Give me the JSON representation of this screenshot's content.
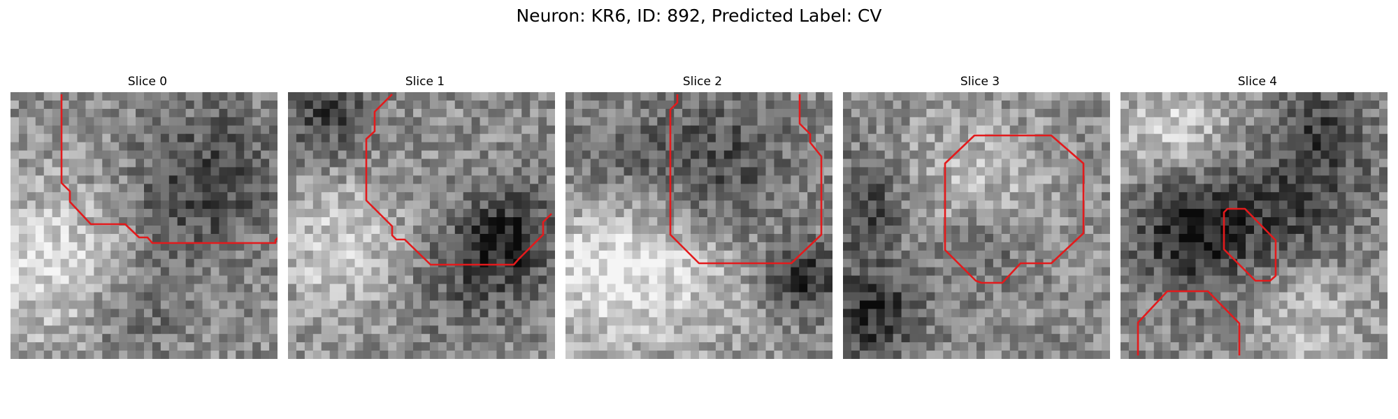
{
  "figure": {
    "title": "Neuron: KR6, ID: 892, Predicted Label: CV",
    "contour_color": "#e31a1c"
  },
  "panels": [
    {
      "title": "Slice 0",
      "seed": 11,
      "blobs": [
        {
          "cx": 4,
          "cy": 20,
          "r": 7,
          "v": 35
        },
        {
          "cx": 24,
          "cy": 9,
          "r": 6,
          "v": -25
        },
        {
          "cx": 20,
          "cy": 14,
          "r": 5,
          "v": -15
        },
        {
          "cx": 14,
          "cy": 26,
          "r": 4,
          "v": -20
        }
      ]
    },
    {
      "title": "Slice 1",
      "seed": 23,
      "blobs": [
        {
          "cx": 6,
          "cy": 18,
          "r": 6,
          "v": 30
        },
        {
          "cx": 26,
          "cy": 17,
          "r": 4,
          "v": -45
        },
        {
          "cx": 20,
          "cy": 22,
          "r": 5,
          "v": -20
        },
        {
          "cx": 4,
          "cy": 2,
          "r": 4,
          "v": -35
        }
      ]
    },
    {
      "title": "Slice 2",
      "seed": 37,
      "blobs": [
        {
          "cx": 5,
          "cy": 20,
          "r": 7,
          "v": 40
        },
        {
          "cx": 18,
          "cy": 8,
          "r": 6,
          "v": -30
        },
        {
          "cx": 15,
          "cy": 23,
          "r": 6,
          "v": 15
        },
        {
          "cx": 28,
          "cy": 22,
          "r": 3,
          "v": -45
        },
        {
          "cx": 5,
          "cy": 9,
          "r": 5,
          "v": -20
        }
      ]
    },
    {
      "title": "Slice 3",
      "seed": 51,
      "blobs": [
        {
          "cx": 15,
          "cy": 11,
          "r": 6,
          "v": 25
        },
        {
          "cx": 2,
          "cy": 13,
          "r": 4,
          "v": -35
        },
        {
          "cx": 3,
          "cy": 26,
          "r": 4,
          "v": -45
        },
        {
          "cx": 16,
          "cy": 18,
          "r": 4,
          "v": -25
        }
      ]
    },
    {
      "title": "Slice 4",
      "seed": 67,
      "blobs": [
        {
          "cx": 8,
          "cy": 16,
          "r": 5,
          "v": -50
        },
        {
          "cx": 20,
          "cy": 14,
          "r": 6,
          "v": -30
        },
        {
          "cx": 24,
          "cy": 4,
          "r": 4,
          "v": -30
        },
        {
          "cx": 6,
          "cy": 4,
          "r": 5,
          "v": 30
        },
        {
          "cx": 22,
          "cy": 26,
          "r": 5,
          "v": 25
        }
      ]
    }
  ]
}
